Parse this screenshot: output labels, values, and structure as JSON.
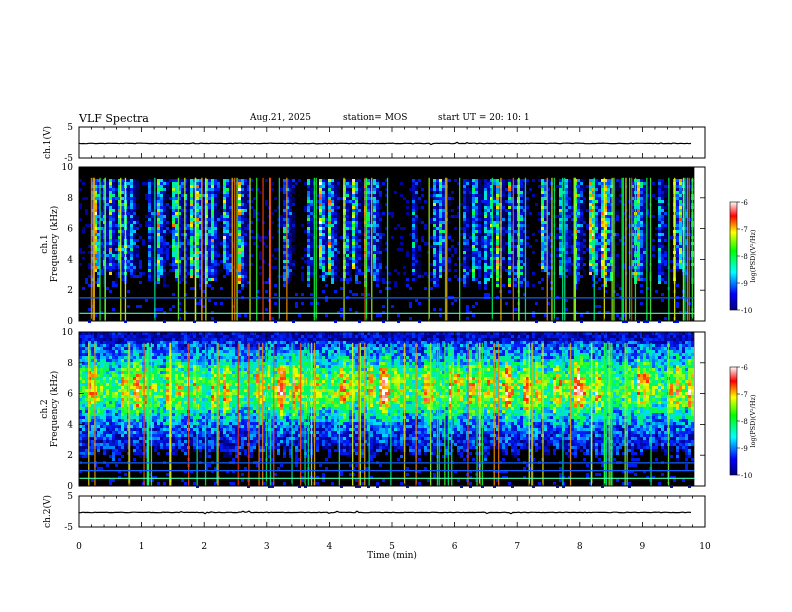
{
  "header": {
    "title": "VLF Spectra",
    "date": "Aug.21, 2025",
    "station": "station= MOS",
    "start": "start  UT =   20: 10: 1"
  },
  "chart_data": [
    {
      "type": "line",
      "name": "ch1-waveform",
      "ylabel": "ch.1(V)",
      "ylim": [
        -5,
        5
      ],
      "yticks": [
        "5",
        "-5"
      ],
      "level": -0.3
    },
    {
      "type": "heatmap",
      "name": "ch1-spectrogram",
      "ylabel": "ch.1\nFrequency (kHz)",
      "ylabel_lines": [
        "ch.1",
        "Frequency (kHz)"
      ],
      "ylim": [
        0,
        10
      ],
      "yticks": [
        "0",
        "2",
        "4",
        "6",
        "8",
        "10"
      ],
      "xlim": [
        0,
        9.83
      ],
      "lines_khz": [
        0.5,
        1.5
      ],
      "colorbar": {
        "label": "log(PSD)(V²/Hz)",
        "ticks": [
          "-6",
          "-7",
          "-8",
          "-9",
          "-10"
        ],
        "range": [
          -10,
          -6
        ]
      }
    },
    {
      "type": "heatmap",
      "name": "ch2-spectrogram",
      "ylabel": "ch.2\nFrequency (kHz)",
      "ylabel_lines": [
        "ch.2",
        "Frequency (kHz)"
      ],
      "ylim": [
        0,
        10
      ],
      "yticks": [
        "0",
        "2",
        "4",
        "6",
        "8",
        "10"
      ],
      "xlim": [
        0,
        9.83
      ],
      "lines_khz": [
        0.5,
        1.0,
        1.5
      ],
      "colorbar": {
        "label": "log(PSD)(V²/Hz)",
        "ticks": [
          "-6",
          "-7",
          "-8",
          "-9",
          "-10"
        ],
        "range": [
          -10,
          -6
        ]
      }
    },
    {
      "type": "line",
      "name": "ch2-waveform",
      "ylabel": "ch.2(V)",
      "ylim": [
        -5,
        5
      ],
      "yticks": [
        "5",
        "-5"
      ],
      "level": -0.3
    }
  ],
  "xaxis": {
    "label": "Time (min)",
    "ticks": [
      "0",
      "1",
      "2",
      "3",
      "4",
      "5",
      "6",
      "7",
      "8",
      "9",
      "10"
    ],
    "range": [
      0,
      10
    ]
  }
}
